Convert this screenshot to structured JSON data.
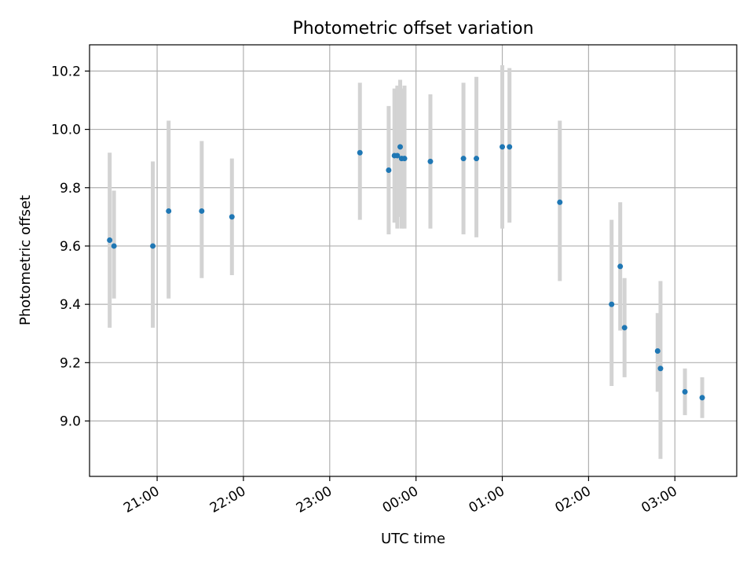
{
  "chart_data": {
    "type": "scatter",
    "title": "Photometric offset variation",
    "xlabel": "UTC time",
    "ylabel": "Photometric offset",
    "x_axis_kind": "time",
    "xlim": [
      "20:13",
      "03:43"
    ],
    "ylim": [
      8.81,
      10.29
    ],
    "x_ticks": [
      "21:00",
      "22:00",
      "23:00",
      "00:00",
      "01:00",
      "02:00",
      "03:00"
    ],
    "y_ticks": [
      "9.0",
      "9.2",
      "9.4",
      "9.6",
      "9.8",
      "10.0",
      "10.2"
    ],
    "grid": true,
    "legend": "none",
    "colors": {
      "point": "#1f77b4",
      "errorbar": "#d3d3d3",
      "grid": "#b0b0b0"
    },
    "points": [
      {
        "time": "20:27",
        "y": 9.62,
        "err_low": 9.32,
        "err_high": 9.92
      },
      {
        "time": "20:30",
        "y": 9.6,
        "err_low": 9.42,
        "err_high": 9.79
      },
      {
        "time": "20:57",
        "y": 9.6,
        "err_low": 9.32,
        "err_high": 9.89
      },
      {
        "time": "21:08",
        "y": 9.72,
        "err_low": 9.42,
        "err_high": 10.03
      },
      {
        "time": "21:31",
        "y": 9.72,
        "err_low": 9.49,
        "err_high": 9.96
      },
      {
        "time": "21:52",
        "y": 9.7,
        "err_low": 9.5,
        "err_high": 9.9
      },
      {
        "time": "23:21",
        "y": 9.92,
        "err_low": 9.69,
        "err_high": 10.16
      },
      {
        "time": "23:41",
        "y": 9.86,
        "err_low": 9.64,
        "err_high": 10.08
      },
      {
        "time": "23:45",
        "y": 9.91,
        "err_low": 9.68,
        "err_high": 10.14
      },
      {
        "time": "23:47",
        "y": 9.91,
        "err_low": 9.66,
        "err_high": 10.15
      },
      {
        "time": "23:49",
        "y": 9.94,
        "err_low": 9.7,
        "err_high": 10.17
      },
      {
        "time": "23:50",
        "y": 9.9,
        "err_low": 9.66,
        "err_high": 10.14
      },
      {
        "time": "23:52",
        "y": 9.9,
        "err_low": 9.66,
        "err_high": 10.15
      },
      {
        "time": "00:10",
        "y": 9.89,
        "err_low": 9.66,
        "err_high": 10.12
      },
      {
        "time": "00:33",
        "y": 9.9,
        "err_low": 9.64,
        "err_high": 10.16
      },
      {
        "time": "00:42",
        "y": 9.9,
        "err_low": 9.63,
        "err_high": 10.18
      },
      {
        "time": "01:00",
        "y": 9.94,
        "err_low": 9.66,
        "err_high": 10.22
      },
      {
        "time": "01:05",
        "y": 9.94,
        "err_low": 9.68,
        "err_high": 10.21
      },
      {
        "time": "01:40",
        "y": 9.75,
        "err_low": 9.48,
        "err_high": 10.03
      },
      {
        "time": "02:16",
        "y": 9.4,
        "err_low": 9.12,
        "err_high": 9.69
      },
      {
        "time": "02:22",
        "y": 9.53,
        "err_low": 9.31,
        "err_high": 9.75
      },
      {
        "time": "02:25",
        "y": 9.32,
        "err_low": 9.15,
        "err_high": 9.49
      },
      {
        "time": "02:48",
        "y": 9.24,
        "err_low": 9.1,
        "err_high": 9.37
      },
      {
        "time": "02:50",
        "y": 9.18,
        "err_low": 8.87,
        "err_high": 9.48
      },
      {
        "time": "03:07",
        "y": 9.1,
        "err_low": 9.02,
        "err_high": 9.18
      },
      {
        "time": "03:19",
        "y": 9.08,
        "err_low": 9.01,
        "err_high": 9.15
      }
    ]
  }
}
